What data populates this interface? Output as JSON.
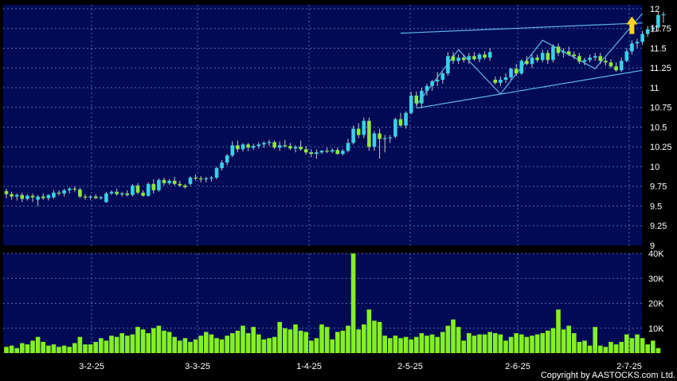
{
  "chart_data": [
    {
      "type": "candlestick",
      "colors": {
        "up": "#39d0e8",
        "down": "#8ee83c",
        "wick": "#c8c8c8",
        "channel": "#5fb4f0",
        "background": "#000a55",
        "grid": "#4a6fb0",
        "signal_arrow": "#ffd21e"
      },
      "x_tick_labels": [
        "3-2-25",
        "3-3-25",
        "1-4-25",
        "2-5-25",
        "2-6-25",
        "2-7-25"
      ],
      "y_ticks": [
        9,
        9.25,
        9.5,
        9.75,
        10,
        10.25,
        10.5,
        10.75,
        11,
        11.25,
        11.5,
        11.75,
        12
      ],
      "y_tick_labels": [
        "9",
        "9.25",
        "9.5",
        "9.75",
        "10",
        "10.25",
        "10.5",
        "10.75",
        "11",
        "11.25",
        "11.5",
        "11.75",
        "12"
      ],
      "ylim": [
        9,
        12.05
      ],
      "ohlc": [
        [
          9.69,
          9.72,
          9.6,
          9.65
        ],
        [
          9.65,
          9.68,
          9.58,
          9.62
        ],
        [
          9.62,
          9.66,
          9.57,
          9.64
        ],
        [
          9.64,
          9.67,
          9.55,
          9.59
        ],
        [
          9.59,
          9.65,
          9.57,
          9.63
        ],
        [
          9.63,
          9.66,
          9.55,
          9.61
        ],
        [
          9.58,
          9.64,
          9.5,
          9.62
        ],
        [
          9.62,
          9.66,
          9.58,
          9.6
        ],
        [
          9.6,
          9.65,
          9.57,
          9.64
        ],
        [
          9.61,
          9.7,
          9.59,
          9.67
        ],
        [
          9.67,
          9.7,
          9.63,
          9.66
        ],
        [
          9.66,
          9.72,
          9.62,
          9.7
        ],
        [
          9.7,
          9.74,
          9.66,
          9.72
        ],
        [
          9.72,
          9.75,
          9.68,
          9.71
        ],
        [
          9.71,
          9.73,
          9.6,
          9.62
        ],
        [
          9.62,
          9.65,
          9.58,
          9.61
        ],
        [
          9.61,
          9.64,
          9.58,
          9.62
        ],
        [
          9.62,
          9.65,
          9.59,
          9.6
        ],
        [
          9.6,
          9.63,
          9.58,
          9.61
        ],
        [
          9.55,
          9.68,
          9.54,
          9.66
        ],
        [
          9.66,
          9.7,
          9.64,
          9.68
        ],
        [
          9.68,
          9.72,
          9.63,
          9.65
        ],
        [
          9.65,
          9.68,
          9.62,
          9.66
        ],
        [
          9.66,
          9.7,
          9.62,
          9.64
        ],
        [
          9.64,
          9.78,
          9.62,
          9.76
        ],
        [
          9.76,
          9.79,
          9.65,
          9.67
        ],
        [
          9.67,
          9.7,
          9.62,
          9.63
        ],
        [
          9.63,
          9.8,
          9.62,
          9.78
        ],
        [
          9.78,
          9.84,
          9.66,
          9.7
        ],
        [
          9.7,
          9.85,
          9.68,
          9.83
        ],
        [
          9.83,
          9.86,
          9.76,
          9.79
        ],
        [
          9.79,
          9.84,
          9.77,
          9.82
        ],
        [
          9.82,
          9.87,
          9.76,
          9.78
        ],
        [
          9.78,
          9.82,
          9.74,
          9.76
        ],
        [
          9.76,
          9.78,
          9.72,
          9.74
        ],
        [
          9.78,
          9.88,
          9.76,
          9.86
        ],
        [
          9.86,
          9.9,
          9.82,
          9.85
        ],
        [
          9.85,
          9.88,
          9.8,
          9.84
        ],
        [
          9.84,
          9.87,
          9.8,
          9.85
        ],
        [
          9.85,
          9.88,
          9.81,
          9.86
        ],
        [
          9.86,
          10.0,
          9.84,
          9.98
        ],
        [
          9.98,
          10.08,
          9.95,
          10.05
        ],
        [
          10.05,
          10.16,
          10.02,
          10.14
        ],
        [
          10.14,
          10.32,
          10.12,
          10.27
        ],
        [
          10.27,
          10.33,
          10.18,
          10.22
        ],
        [
          10.22,
          10.3,
          10.19,
          10.28
        ],
        [
          10.28,
          10.3,
          10.2,
          10.24
        ],
        [
          10.24,
          10.29,
          10.21,
          10.26
        ],
        [
          10.26,
          10.31,
          10.23,
          10.28
        ],
        [
          10.28,
          10.32,
          10.24,
          10.3
        ],
        [
          10.3,
          10.34,
          10.26,
          10.31
        ],
        [
          10.31,
          10.33,
          10.22,
          10.24
        ],
        [
          10.24,
          10.32,
          10.2,
          10.27
        ],
        [
          10.27,
          10.34,
          10.24,
          10.26
        ],
        [
          10.26,
          10.3,
          10.21,
          10.23
        ],
        [
          10.23,
          10.27,
          10.18,
          10.25
        ],
        [
          10.25,
          10.33,
          10.2,
          10.22
        ],
        [
          10.22,
          10.26,
          10.15,
          10.18
        ],
        [
          10.18,
          10.22,
          10.12,
          10.16
        ],
        [
          10.16,
          10.22,
          10.1,
          10.18
        ],
        [
          10.18,
          10.21,
          10.16,
          10.2
        ],
        [
          10.2,
          10.24,
          10.17,
          10.19
        ],
        [
          10.19,
          10.23,
          10.17,
          10.21
        ],
        [
          10.21,
          10.24,
          10.15,
          10.16
        ],
        [
          10.16,
          10.22,
          10.14,
          10.2
        ],
        [
          10.2,
          10.35,
          10.18,
          10.3
        ],
        [
          10.3,
          10.52,
          10.28,
          10.48
        ],
        [
          10.48,
          10.55,
          10.36,
          10.4
        ],
        [
          10.4,
          10.62,
          10.36,
          10.58
        ],
        [
          10.58,
          10.62,
          10.2,
          10.25
        ],
        [
          10.25,
          10.45,
          10.2,
          10.42
        ],
        [
          10.42,
          10.48,
          10.1,
          10.35
        ],
        [
          10.35,
          10.4,
          10.18,
          10.36
        ],
        [
          10.36,
          10.4,
          10.3,
          10.37
        ],
        [
          10.38,
          10.62,
          10.36,
          10.6
        ],
        [
          10.6,
          10.68,
          10.5,
          10.52
        ],
        [
          10.52,
          10.7,
          10.48,
          10.68
        ],
        [
          10.68,
          10.95,
          10.66,
          10.9
        ],
        [
          10.9,
          10.95,
          10.75,
          10.8
        ],
        [
          10.8,
          11.0,
          10.74,
          10.96
        ],
        [
          10.96,
          11.05,
          10.9,
          11.02
        ],
        [
          11.02,
          11.1,
          10.96,
          11.08
        ],
        [
          11.08,
          11.2,
          11.02,
          11.1
        ],
        [
          11.1,
          11.2,
          11.05,
          11.18
        ],
        [
          11.18,
          11.45,
          11.15,
          11.4
        ],
        [
          11.4,
          11.45,
          11.3,
          11.34
        ],
        [
          11.34,
          11.42,
          11.3,
          11.38
        ],
        [
          11.38,
          11.42,
          11.32,
          11.35
        ],
        [
          11.35,
          11.44,
          11.3,
          11.4
        ],
        [
          11.4,
          11.45,
          11.34,
          11.36
        ],
        [
          11.36,
          11.44,
          11.32,
          11.42
        ],
        [
          11.42,
          11.46,
          11.36,
          11.38
        ],
        [
          11.38,
          11.5,
          11.34,
          11.45
        ],
        [
          11.1,
          11.14,
          11.04,
          11.06
        ],
        [
          11.06,
          11.14,
          11.02,
          11.1
        ],
        [
          11.1,
          11.18,
          11.06,
          11.13
        ],
        [
          11.13,
          11.25,
          11.1,
          11.24
        ],
        [
          11.24,
          11.3,
          11.15,
          11.18
        ],
        [
          11.18,
          11.36,
          11.16,
          11.34
        ],
        [
          11.34,
          11.4,
          11.28,
          11.3
        ],
        [
          11.3,
          11.42,
          11.25,
          11.38
        ],
        [
          11.38,
          11.42,
          11.32,
          11.35
        ],
        [
          11.35,
          11.48,
          11.32,
          11.44
        ],
        [
          11.44,
          11.48,
          11.3,
          11.35
        ],
        [
          11.35,
          11.55,
          11.32,
          11.52
        ],
        [
          11.52,
          11.56,
          11.4,
          11.44
        ],
        [
          11.44,
          11.5,
          11.38,
          11.46
        ],
        [
          11.46,
          11.52,
          11.4,
          11.42
        ],
        [
          11.42,
          11.46,
          11.36,
          11.4
        ],
        [
          11.4,
          11.44,
          11.3,
          11.33
        ],
        [
          11.33,
          11.38,
          11.28,
          11.35
        ],
        [
          11.35,
          11.42,
          11.32,
          11.38
        ],
        [
          11.38,
          11.44,
          11.34,
          11.4
        ],
        [
          11.4,
          11.44,
          11.3,
          11.34
        ],
        [
          11.34,
          11.38,
          11.28,
          11.32
        ],
        [
          11.32,
          11.36,
          11.25,
          11.27
        ],
        [
          11.27,
          11.32,
          11.2,
          11.22
        ],
        [
          11.22,
          11.38,
          11.2,
          11.34
        ],
        [
          11.34,
          11.5,
          11.32,
          11.46
        ],
        [
          11.46,
          11.6,
          11.42,
          11.56
        ],
        [
          11.56,
          11.62,
          11.5,
          11.58
        ],
        [
          11.58,
          11.72,
          11.54,
          11.68
        ],
        [
          11.68,
          11.78,
          11.64,
          11.74
        ],
        [
          11.74,
          11.8,
          11.7,
          11.76
        ],
        [
          11.76,
          11.96,
          11.72,
          11.92
        ],
        [
          11.92,
          11.96,
          11.82,
          11.93
        ]
      ],
      "channel_lines": [
        {
          "from": [
            75,
            11.69
          ],
          "to": [
            121,
            11.82
          ]
        },
        {
          "from": [
            78,
            10.74
          ],
          "to": [
            121,
            11.22
          ]
        }
      ],
      "zigzag": [
        [
          78,
          10.78
        ],
        [
          86,
          11.48
        ],
        [
          94,
          10.92
        ],
        [
          102,
          11.6
        ],
        [
          112,
          11.24
        ],
        [
          121,
          11.94
        ]
      ],
      "signal_arrow": {
        "index": 119,
        "price": 11.68
      }
    },
    {
      "type": "bar",
      "color": "#84f01e",
      "y_ticks": [
        10000,
        20000,
        30000,
        40000
      ],
      "y_tick_labels": [
        "10K",
        "20K",
        "30K",
        "40K"
      ],
      "ylim": [
        0,
        40000
      ],
      "values": [
        2500,
        3000,
        2000,
        4000,
        3500,
        5000,
        6500,
        4500,
        3000,
        3500,
        2500,
        3000,
        2500,
        4000,
        6500,
        3500,
        3500,
        4500,
        6000,
        5000,
        7000,
        6500,
        8000,
        7000,
        7500,
        10500,
        9500,
        8000,
        10000,
        11000,
        9000,
        8500,
        6500,
        5000,
        6000,
        4500,
        5500,
        7000,
        8500,
        7500,
        6000,
        5500,
        7000,
        8000,
        9000,
        11000,
        8000,
        10500,
        7500,
        5500,
        6000,
        6500,
        12500,
        10000,
        9500,
        11500,
        9000,
        8500,
        5000,
        6000,
        11500,
        10500,
        5500,
        8500,
        9000,
        11000,
        40000,
        9500,
        11500,
        17500,
        13000,
        12500,
        7000,
        6000,
        7000,
        6000,
        6500,
        5500,
        6500,
        8000,
        7000,
        7500,
        6500,
        8500,
        11000,
        13500,
        10500,
        5000,
        8000,
        7000,
        7500,
        7500,
        8500,
        8000,
        7500,
        5000,
        6500,
        8000,
        7500,
        6500,
        7000,
        7500,
        8000,
        9000,
        10000,
        17500,
        9500,
        11000,
        8000,
        4500,
        5000,
        3000,
        10500,
        3000,
        2500,
        4500,
        3500,
        4500,
        7500,
        6000,
        7500,
        6000,
        3500,
        5000,
        2000
      ]
    }
  ],
  "copyright": "Copyright by AASTOCKS.com Ltd."
}
